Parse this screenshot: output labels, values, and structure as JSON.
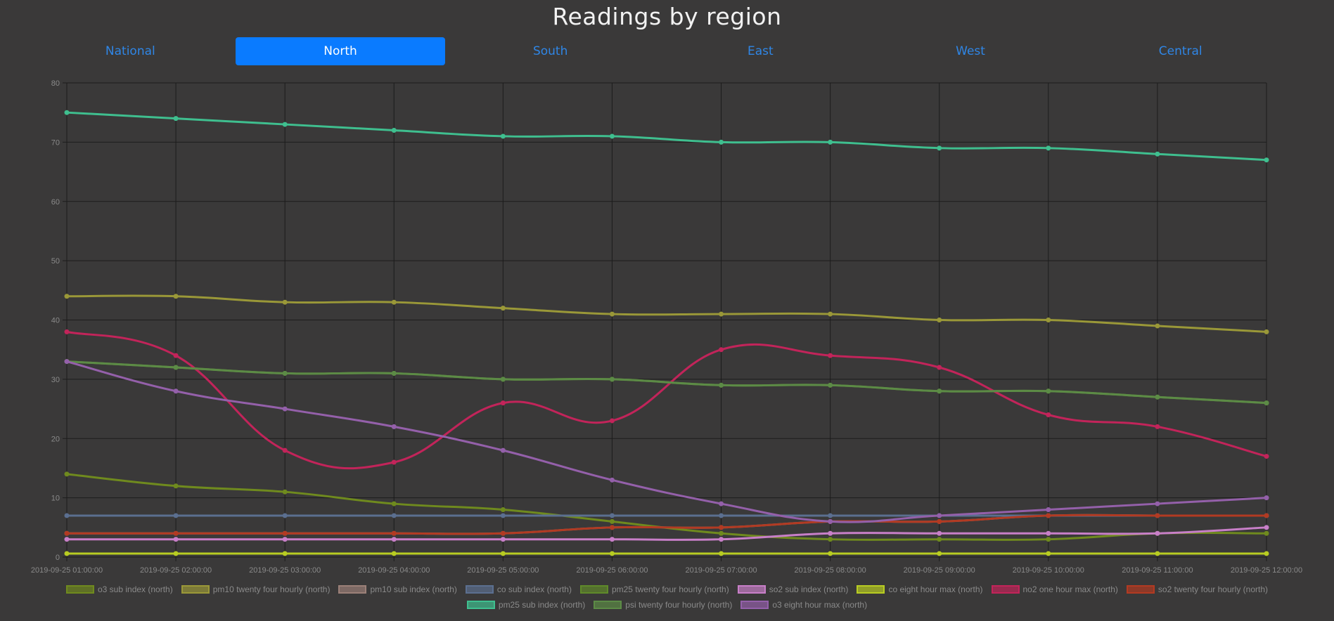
{
  "title": "Readings by region",
  "tabs": [
    {
      "label": "National",
      "active": false
    },
    {
      "label": "North",
      "active": true
    },
    {
      "label": "South",
      "active": false
    },
    {
      "label": "East",
      "active": false
    },
    {
      "label": "West",
      "active": false
    },
    {
      "label": "Central",
      "active": false
    }
  ],
  "colors": {
    "background": "#3a3939",
    "grid": "#1c1c1c",
    "tick_label": "#8a8a8a",
    "active_tab": "#0a7bff",
    "tab_text": "#2f86e6"
  },
  "chart_data": {
    "type": "line",
    "ylim": [
      0,
      80
    ],
    "y_ticks": [
      0,
      10,
      20,
      30,
      40,
      50,
      60,
      70,
      80
    ],
    "grid": true,
    "legend_position": "bottom",
    "x": [
      "2019-09-25 01:00:00",
      "2019-09-25 02:00:00",
      "2019-09-25 03:00:00",
      "2019-09-25 04:00:00",
      "2019-09-25 05:00:00",
      "2019-09-25 06:00:00",
      "2019-09-25 07:00:00",
      "2019-09-25 08:00:00",
      "2019-09-25 09:00:00",
      "2019-09-25 10:00:00",
      "2019-09-25 11:00:00",
      "2019-09-25 12:00:00"
    ],
    "series": [
      {
        "name": "o3 sub index (north)",
        "color": "#6f8a1e",
        "values": [
          14,
          12,
          11,
          9,
          8,
          6,
          4,
          3,
          3,
          3,
          4,
          4
        ]
      },
      {
        "name": "pm10 twenty four hourly (north)",
        "color": "#9a9838",
        "values": [
          44,
          44,
          43,
          43,
          42,
          41,
          41,
          41,
          40,
          40,
          39,
          38
        ]
      },
      {
        "name": "pm10 sub index (north)",
        "color": "#9b8078",
        "values": [
          4,
          4,
          4,
          4,
          4,
          5,
          5,
          6,
          6,
          7,
          7,
          7
        ]
      },
      {
        "name": "co sub index (north)",
        "color": "#5b6f90",
        "values": [
          7,
          7,
          7,
          7,
          7,
          7,
          7,
          7,
          7,
          7,
          7,
          7
        ]
      },
      {
        "name": "pm25 twenty four hourly (north)",
        "color": "#5f8a2a",
        "values": [
          33,
          32,
          31,
          31,
          30,
          30,
          29,
          29,
          28,
          28,
          27,
          26
        ]
      },
      {
        "name": "so2 sub index (north)",
        "color": "#c87fc8",
        "values": [
          3,
          3,
          3,
          3,
          3,
          3,
          3,
          4,
          4,
          4,
          4,
          5
        ]
      },
      {
        "name": "co eight hour max (north)",
        "color": "#b8cc22",
        "values": [
          0.6,
          0.6,
          0.6,
          0.6,
          0.6,
          0.6,
          0.6,
          0.6,
          0.6,
          0.6,
          0.6,
          0.6
        ]
      },
      {
        "name": "no2 one hour max (north)",
        "color": "#c2245a",
        "values": [
          38,
          34,
          18,
          16,
          26,
          23,
          35,
          34,
          32,
          24,
          22,
          17
        ]
      },
      {
        "name": "so2 twenty four hourly (north)",
        "color": "#b23a22",
        "values": [
          4,
          4,
          4,
          4,
          4,
          5,
          5,
          6,
          6,
          7,
          7,
          7
        ]
      },
      {
        "name": "pm25 sub index (north)",
        "color": "#3fbf8f",
        "values": [
          75,
          74,
          73,
          72,
          71,
          71,
          70,
          70,
          69,
          69,
          68,
          67
        ]
      },
      {
        "name": "psi twenty four hourly (north)",
        "color": "#5c8b46",
        "values": [
          33,
          32,
          31,
          31,
          30,
          30,
          29,
          29,
          28,
          28,
          27,
          26
        ]
      },
      {
        "name": "o3 eight hour max (north)",
        "color": "#9460aa",
        "values": [
          33,
          28,
          25,
          22,
          18,
          13,
          9,
          6,
          7,
          8,
          9,
          10
        ]
      }
    ]
  }
}
